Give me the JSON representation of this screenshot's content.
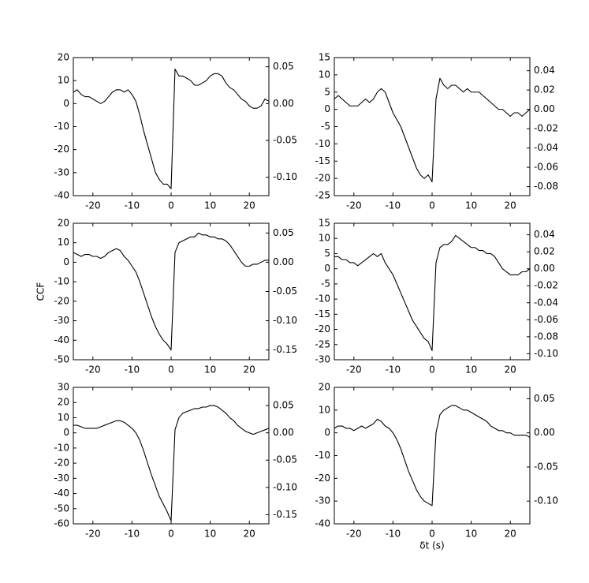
{
  "chart_data": [
    {
      "type": "line",
      "color": "#000000",
      "x": [
        -25,
        -24,
        -23,
        -22,
        -21,
        -20,
        -19,
        -18,
        -17,
        -16,
        -15,
        -14,
        -13,
        -12,
        -11,
        -10,
        -9,
        -8,
        -7,
        -6,
        -5,
        -4,
        -3,
        -2,
        -1,
        0,
        1,
        2,
        3,
        4,
        5,
        6,
        7,
        8,
        9,
        10,
        11,
        12,
        13,
        14,
        15,
        16,
        17,
        18,
        19,
        20,
        21,
        22,
        23,
        24,
        25
      ],
      "values": [
        5,
        6,
        4,
        3,
        3,
        2,
        1,
        0,
        1,
        3,
        5,
        6,
        6,
        5,
        6,
        4,
        1,
        -5,
        -12,
        -18,
        -24,
        -30,
        -33,
        -35,
        -35,
        -37,
        15,
        12,
        12,
        11,
        10,
        8,
        8,
        9,
        10,
        12,
        13,
        13,
        12,
        9,
        7,
        6,
        4,
        2,
        1,
        -1,
        -2,
        -2,
        -1,
        2,
        1
      ],
      "xlim": [
        -25,
        25
      ],
      "xticks": [
        -20,
        -10,
        0,
        10,
        20
      ],
      "ylim": [
        -40,
        20
      ],
      "yticks": [
        -40,
        -30,
        -20,
        -10,
        0,
        10,
        20
      ],
      "y2lim": [
        -0.125,
        0.0625
      ],
      "y2ticks": [
        {
          "value": -0.1,
          "label": "-0.10"
        },
        -0.05,
        {
          "value": 0,
          "label": "0.00"
        },
        0.05
      ]
    },
    {
      "type": "line",
      "color": "#000000",
      "x": [
        -25,
        -24,
        -23,
        -22,
        -21,
        -20,
        -19,
        -18,
        -17,
        -16,
        -15,
        -14,
        -13,
        -12,
        -11,
        -10,
        -9,
        -8,
        -7,
        -6,
        -5,
        -4,
        -3,
        -2,
        -1,
        0,
        1,
        2,
        3,
        4,
        5,
        6,
        7,
        8,
        9,
        10,
        11,
        12,
        13,
        14,
        15,
        16,
        17,
        18,
        19,
        20,
        21,
        22,
        23,
        24,
        25
      ],
      "values": [
        3,
        4,
        3,
        2,
        1,
        1,
        1,
        2,
        3,
        2,
        3,
        5,
        6,
        5,
        2,
        -1,
        -3,
        -5,
        -8,
        -11,
        -14,
        -17,
        -19,
        -20,
        -19,
        -21,
        3,
        9,
        7,
        6,
        7,
        7,
        6,
        5,
        6,
        5,
        5,
        5,
        4,
        3,
        2,
        1,
        0,
        0,
        -1,
        -2,
        -1,
        -1,
        -2,
        -1,
        0
      ],
      "xlim": [
        -25,
        25
      ],
      "xticks": [
        -20,
        -10,
        0,
        10,
        20
      ],
      "ylim": [
        -25,
        15
      ],
      "yticks": [
        -25,
        -20,
        -15,
        -10,
        -5,
        0,
        5,
        10,
        15
      ],
      "y2lim": [
        -0.0893,
        0.0536
      ],
      "y2ticks": [
        -0.08,
        -0.06,
        -0.04,
        -0.02,
        {
          "value": 0,
          "label": "0.00"
        },
        0.02,
        0.04
      ]
    },
    {
      "type": "line",
      "color": "#000000",
      "ylabel": "CCF",
      "x": [
        -25,
        -24,
        -23,
        -22,
        -21,
        -20,
        -19,
        -18,
        -17,
        -16,
        -15,
        -14,
        -13,
        -12,
        -11,
        -10,
        -9,
        -8,
        -7,
        -6,
        -5,
        -4,
        -3,
        -2,
        -1,
        0,
        1,
        2,
        3,
        4,
        5,
        6,
        7,
        8,
        9,
        10,
        11,
        12,
        13,
        14,
        15,
        16,
        17,
        18,
        19,
        20,
        21,
        22,
        23,
        24,
        25
      ],
      "values": [
        5,
        4,
        3,
        4,
        4,
        3,
        3,
        2,
        3,
        5,
        6,
        7,
        6,
        3,
        1,
        -2,
        -5,
        -10,
        -16,
        -22,
        -28,
        -33,
        -37,
        -40,
        -42,
        -45,
        5,
        10,
        11,
        12,
        13,
        13,
        15,
        14,
        14,
        13,
        13,
        12,
        12,
        11,
        9,
        6,
        3,
        0,
        -2,
        -2,
        -1,
        -1,
        0,
        1,
        1
      ],
      "xlim": [
        -25,
        25
      ],
      "xticks": [
        -20,
        -10,
        0,
        10,
        20
      ],
      "ylim": [
        -50,
        20
      ],
      "yticks": [
        -50,
        -40,
        -30,
        -20,
        -10,
        0,
        10,
        20
      ],
      "y2lim": [
        -0.1667,
        0.0667
      ],
      "y2ticks": [
        -0.15,
        {
          "value": -0.1,
          "label": "-0.10"
        },
        -0.05,
        {
          "value": 0,
          "label": "0.00"
        },
        0.05
      ]
    },
    {
      "type": "line",
      "color": "#000000",
      "x": [
        -25,
        -24,
        -23,
        -22,
        -21,
        -20,
        -19,
        -18,
        -17,
        -16,
        -15,
        -14,
        -13,
        -12,
        -11,
        -10,
        -9,
        -8,
        -7,
        -6,
        -5,
        -4,
        -3,
        -2,
        -1,
        0,
        1,
        2,
        3,
        4,
        5,
        6,
        7,
        8,
        9,
        10,
        11,
        12,
        13,
        14,
        15,
        16,
        17,
        18,
        19,
        20,
        21,
        22,
        23,
        24,
        25
      ],
      "values": [
        4,
        4,
        3,
        3,
        2,
        2,
        1,
        2,
        3,
        4,
        5,
        4,
        5,
        2,
        0,
        -2,
        -5,
        -8,
        -11,
        -14,
        -17,
        -19,
        -21,
        -23,
        -24,
        -27,
        2,
        7,
        8,
        8,
        9,
        11,
        10,
        9,
        8,
        7,
        7,
        6,
        6,
        5,
        5,
        4,
        2,
        0,
        -1,
        -2,
        -2,
        -2,
        -1,
        -1,
        0
      ],
      "xlim": [
        -25,
        25
      ],
      "xticks": [
        -20,
        -10,
        0,
        10,
        20
      ],
      "ylim": [
        -30,
        15
      ],
      "yticks": [
        -30,
        -25,
        -20,
        -15,
        -10,
        -5,
        0,
        5,
        10,
        15
      ],
      "y2lim": [
        -0.1071,
        0.0536
      ],
      "y2ticks": [
        {
          "value": -0.1,
          "label": "-0.10"
        },
        -0.08,
        -0.06,
        -0.04,
        -0.02,
        {
          "value": 0,
          "label": "0.00"
        },
        0.02,
        0.04
      ]
    },
    {
      "type": "line",
      "color": "#000000",
      "x": [
        -25,
        -24,
        -23,
        -22,
        -21,
        -20,
        -19,
        -18,
        -17,
        -16,
        -15,
        -14,
        -13,
        -12,
        -11,
        -10,
        -9,
        -8,
        -7,
        -6,
        -5,
        -4,
        -3,
        -2,
        -1,
        0,
        1,
        2,
        3,
        4,
        5,
        6,
        7,
        8,
        9,
        10,
        11,
        12,
        13,
        14,
        15,
        16,
        17,
        18,
        19,
        20,
        21,
        22,
        23,
        24,
        25
      ],
      "values": [
        5,
        5,
        4,
        3,
        3,
        3,
        3,
        4,
        5,
        6,
        7,
        8,
        8,
        7,
        5,
        3,
        0,
        -5,
        -12,
        -20,
        -28,
        -35,
        -42,
        -47,
        -52,
        -58,
        2,
        10,
        13,
        14,
        15,
        16,
        16,
        17,
        17,
        18,
        18,
        17,
        15,
        13,
        10,
        8,
        5,
        3,
        1,
        0,
        -1,
        0,
        1,
        2,
        3
      ],
      "xlim": [
        -25,
        25
      ],
      "xticks": [
        -20,
        -10,
        0,
        10,
        20
      ],
      "ylim": [
        -60,
        30
      ],
      "yticks": [
        -60,
        -50,
        -40,
        -30,
        -20,
        -10,
        0,
        10,
        20,
        30
      ],
      "y2lim": [
        -0.1667,
        0.0833
      ],
      "y2ticks": [
        -0.15,
        {
          "value": -0.1,
          "label": "-0.10"
        },
        -0.05,
        {
          "value": 0,
          "label": "0.00"
        },
        0.05
      ]
    },
    {
      "type": "line",
      "color": "#000000",
      "xlabel": "δt (s)",
      "x": [
        -25,
        -24,
        -23,
        -22,
        -21,
        -20,
        -19,
        -18,
        -17,
        -16,
        -15,
        -14,
        -13,
        -12,
        -11,
        -10,
        -9,
        -8,
        -7,
        -6,
        -5,
        -4,
        -3,
        -2,
        -1,
        0,
        1,
        2,
        3,
        4,
        5,
        6,
        7,
        8,
        9,
        10,
        11,
        12,
        13,
        14,
        15,
        16,
        17,
        18,
        19,
        20,
        21,
        22,
        23,
        24,
        25
      ],
      "values": [
        2,
        3,
        3,
        2,
        2,
        1,
        2,
        3,
        2,
        3,
        4,
        6,
        5,
        3,
        2,
        0,
        -3,
        -7,
        -12,
        -17,
        -21,
        -25,
        -28,
        -30,
        -31,
        -32,
        0,
        8,
        10,
        11,
        12,
        12,
        11,
        10,
        10,
        9,
        8,
        7,
        6,
        5,
        3,
        2,
        1,
        1,
        0,
        0,
        -1,
        -1,
        -1,
        -1,
        -2
      ],
      "xlim": [
        -25,
        25
      ],
      "xticks": [
        -20,
        -10,
        0,
        10,
        20
      ],
      "ylim": [
        -40,
        20
      ],
      "yticks": [
        -40,
        -30,
        -20,
        -10,
        0,
        10,
        20
      ],
      "y2lim": [
        -0.1333,
        0.0667
      ],
      "y2ticks": [
        {
          "value": -0.1,
          "label": "-0.10"
        },
        -0.05,
        {
          "value": 0,
          "label": "0.00"
        },
        0.05
      ]
    }
  ]
}
